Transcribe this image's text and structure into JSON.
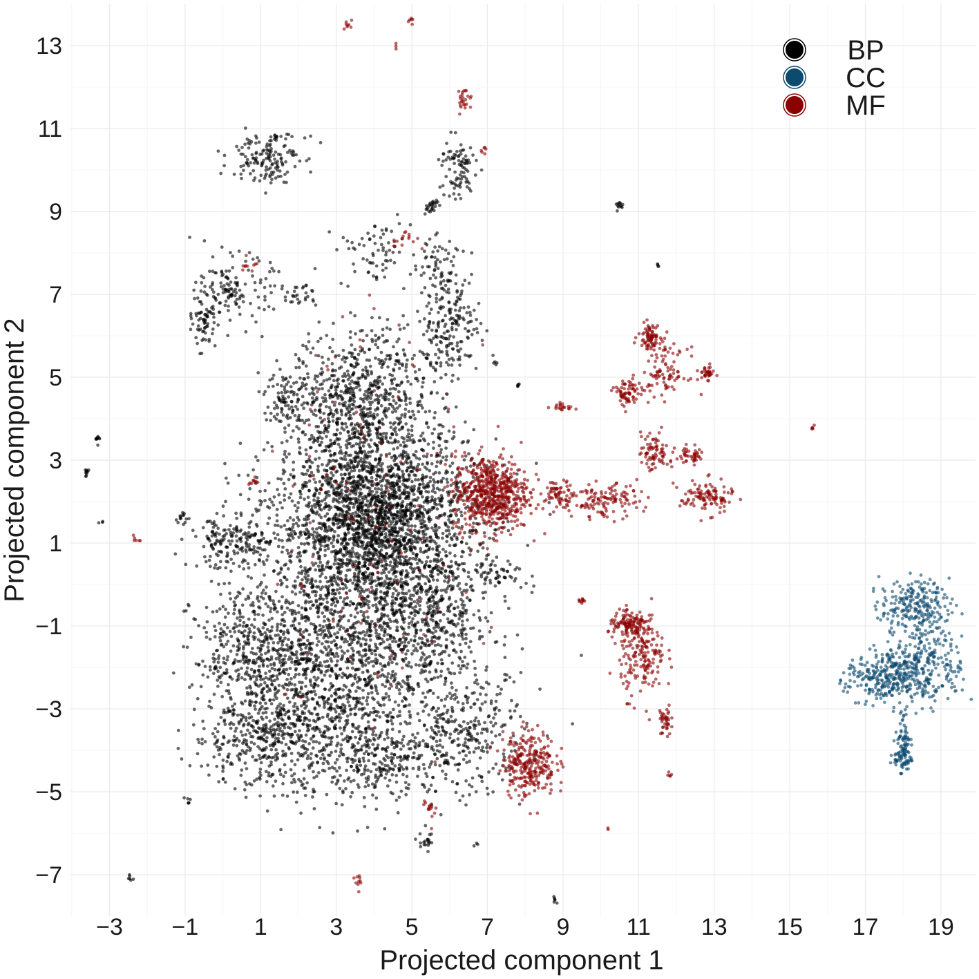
{
  "chart_data": {
    "type": "scatter",
    "title": "",
    "xlabel": "Projected component 1",
    "ylabel": "Projected component 2",
    "xlim": [
      -4,
      20
    ],
    "ylim": [
      -7.8,
      13.8
    ],
    "xticks": [
      -3,
      -1,
      1,
      3,
      5,
      7,
      9,
      11,
      13,
      15,
      17,
      19
    ],
    "yticks": [
      -7,
      -5,
      -3,
      -1,
      1,
      3,
      5,
      7,
      9,
      11,
      13
    ],
    "xtick_labels": [
      "−3",
      "−1",
      "1",
      "3",
      "5",
      "7",
      "9",
      "11",
      "13",
      "15",
      "17",
      "19"
    ],
    "ytick_labels": [
      "−7",
      "−5",
      "−3",
      "−1",
      "1",
      "3",
      "5",
      "7",
      "9",
      "11",
      "13"
    ],
    "grid": true,
    "legend_position": "top-right",
    "series": [
      {
        "name": "BP",
        "color": "#000000",
        "clusters": [
          {
            "x": 4.0,
            "y": 1.6,
            "sx": 1.3,
            "sy": 1.1,
            "n": 2600
          },
          {
            "x": 3.6,
            "y": 4.5,
            "sx": 0.9,
            "sy": 0.8,
            "n": 700
          },
          {
            "x": 2.8,
            "y": -2.0,
            "sx": 1.2,
            "sy": 1.3,
            "n": 1100
          },
          {
            "x": 5.2,
            "y": -0.8,
            "sx": 1.0,
            "sy": 1.0,
            "n": 700
          },
          {
            "x": 1.0,
            "y": -1.6,
            "sx": 0.9,
            "sy": 0.8,
            "n": 450
          },
          {
            "x": 1.0,
            "y": -3.7,
            "sx": 0.9,
            "sy": 0.6,
            "n": 380
          },
          {
            "x": 4.2,
            "y": -4.2,
            "sx": 1.1,
            "sy": 0.5,
            "n": 320
          },
          {
            "x": 6.4,
            "y": -3.6,
            "sx": 0.8,
            "sy": 0.7,
            "n": 300
          },
          {
            "x": 0.3,
            "y": 1.0,
            "sx": 0.6,
            "sy": 0.3,
            "n": 180
          },
          {
            "x": 1.7,
            "y": 4.5,
            "sx": 0.3,
            "sy": 0.3,
            "n": 70
          },
          {
            "x": 6.0,
            "y": 6.3,
            "sx": 0.4,
            "sy": 0.7,
            "n": 220
          },
          {
            "x": 4.0,
            "y": 8.0,
            "sx": 0.5,
            "sy": 0.4,
            "n": 70
          },
          {
            "x": 1.1,
            "y": 10.3,
            "sx": 0.45,
            "sy": 0.3,
            "n": 140
          },
          {
            "x": 6.2,
            "y": 10.0,
            "sx": 0.25,
            "sy": 0.4,
            "n": 90
          },
          {
            "x": 0.3,
            "y": 7.1,
            "sx": 0.5,
            "sy": 0.4,
            "n": 140
          },
          {
            "x": -0.5,
            "y": 6.3,
            "sx": 0.15,
            "sy": 0.3,
            "n": 60
          },
          {
            "x": 2.0,
            "y": 7.0,
            "sx": 0.3,
            "sy": 0.2,
            "n": 30
          },
          {
            "x": 5.6,
            "y": 7.8,
            "sx": 0.3,
            "sy": 0.3,
            "n": 40
          },
          {
            "x": 5.4,
            "y": -6.2,
            "sx": 0.1,
            "sy": 0.15,
            "n": 20
          },
          {
            "x": 5.5,
            "y": 9.1,
            "sx": 0.1,
            "sy": 0.1,
            "n": 25
          },
          {
            "x": 7.3,
            "y": 0.3,
            "sx": 0.4,
            "sy": 0.15,
            "n": 50
          },
          {
            "x": 10.5,
            "y": 9.15,
            "sx": 0.05,
            "sy": 0.05,
            "n": 12
          },
          {
            "x": 11.5,
            "y": 7.7,
            "sx": 0.03,
            "sy": 0.03,
            "n": 4
          },
          {
            "x": -3.3,
            "y": 3.5,
            "sx": 0.05,
            "sy": 0.05,
            "n": 10
          },
          {
            "x": -3.6,
            "y": 2.7,
            "sx": 0.05,
            "sy": 0.05,
            "n": 10
          },
          {
            "x": -1.1,
            "y": 1.6,
            "sx": 0.1,
            "sy": 0.1,
            "n": 12
          },
          {
            "x": -3.2,
            "y": 1.5,
            "sx": 0.03,
            "sy": 0.03,
            "n": 3
          },
          {
            "x": -2.5,
            "y": -7.1,
            "sx": 0.05,
            "sy": 0.05,
            "n": 6
          },
          {
            "x": -0.9,
            "y": -5.2,
            "sx": 0.05,
            "sy": 0.05,
            "n": 6
          },
          {
            "x": 8.8,
            "y": -7.6,
            "sx": 0.05,
            "sy": 0.05,
            "n": 6
          },
          {
            "x": 6.7,
            "y": -6.3,
            "sx": 0.03,
            "sy": 0.03,
            "n": 3
          },
          {
            "x": 7.8,
            "y": 4.8,
            "sx": 0.05,
            "sy": 0.05,
            "n": 5
          },
          {
            "x": 7.2,
            "y": 5.4,
            "sx": 0.05,
            "sy": 0.05,
            "n": 5
          },
          {
            "x": 1.5,
            "y": 10.8,
            "sx": 0.3,
            "sy": 0.05,
            "n": 15
          }
        ]
      },
      {
        "name": "CC",
        "color": "#0c4a6e",
        "clusters": [
          {
            "x": 18.3,
            "y": -0.5,
            "sx": 0.45,
            "sy": 0.3,
            "n": 220
          },
          {
            "x": 18.5,
            "y": -1.9,
            "sx": 0.55,
            "sy": 0.5,
            "n": 320
          },
          {
            "x": 17.4,
            "y": -2.3,
            "sx": 0.45,
            "sy": 0.3,
            "n": 220
          },
          {
            "x": 18.0,
            "y": -3.7,
            "sx": 0.1,
            "sy": 0.4,
            "n": 70
          },
          {
            "x": 18.0,
            "y": -4.2,
            "sx": 0.12,
            "sy": 0.15,
            "n": 50
          }
        ]
      },
      {
        "name": "MF",
        "color": "#8b0000",
        "clusters": [
          {
            "x": 7.1,
            "y": 2.2,
            "sx": 0.5,
            "sy": 0.45,
            "n": 650
          },
          {
            "x": 8.1,
            "y": -4.3,
            "sx": 0.35,
            "sy": 0.4,
            "n": 280
          },
          {
            "x": 11.1,
            "y": -1.7,
            "sx": 0.3,
            "sy": 0.5,
            "n": 180
          },
          {
            "x": 10.8,
            "y": -1.0,
            "sx": 0.3,
            "sy": 0.15,
            "n": 120
          },
          {
            "x": 11.7,
            "y": -3.3,
            "sx": 0.08,
            "sy": 0.2,
            "n": 40
          },
          {
            "x": 11.3,
            "y": 6.0,
            "sx": 0.15,
            "sy": 0.15,
            "n": 80
          },
          {
            "x": 11.7,
            "y": 5.1,
            "sx": 0.3,
            "sy": 0.3,
            "n": 90
          },
          {
            "x": 12.8,
            "y": 5.1,
            "sx": 0.1,
            "sy": 0.08,
            "n": 35
          },
          {
            "x": 10.7,
            "y": 4.6,
            "sx": 0.18,
            "sy": 0.18,
            "n": 70
          },
          {
            "x": 11.4,
            "y": 3.2,
            "sx": 0.2,
            "sy": 0.25,
            "n": 80
          },
          {
            "x": 12.4,
            "y": 3.1,
            "sx": 0.2,
            "sy": 0.12,
            "n": 45
          },
          {
            "x": 12.8,
            "y": 2.1,
            "sx": 0.35,
            "sy": 0.2,
            "n": 110
          },
          {
            "x": 10.1,
            "y": 2.0,
            "sx": 0.45,
            "sy": 0.2,
            "n": 130
          },
          {
            "x": 8.9,
            "y": 2.2,
            "sx": 0.2,
            "sy": 0.15,
            "n": 60
          },
          {
            "x": 9.0,
            "y": 4.3,
            "sx": 0.15,
            "sy": 0.05,
            "n": 20
          },
          {
            "x": 9.5,
            "y": -0.4,
            "sx": 0.05,
            "sy": 0.05,
            "n": 10
          },
          {
            "x": 11.8,
            "y": -4.6,
            "sx": 0.03,
            "sy": 0.04,
            "n": 5
          },
          {
            "x": 15.6,
            "y": 3.8,
            "sx": 0.03,
            "sy": 0.03,
            "n": 5
          },
          {
            "x": 3.6,
            "y": -7.2,
            "sx": 0.06,
            "sy": 0.1,
            "n": 10
          },
          {
            "x": 10.2,
            "y": -5.9,
            "sx": 0.02,
            "sy": 0.02,
            "n": 2
          },
          {
            "x": 6.4,
            "y": 11.7,
            "sx": 0.1,
            "sy": 0.15,
            "n": 25
          },
          {
            "x": 6.9,
            "y": 10.5,
            "sx": 0.05,
            "sy": 0.05,
            "n": 6
          },
          {
            "x": 3.3,
            "y": 13.5,
            "sx": 0.06,
            "sy": 0.06,
            "n": 8
          },
          {
            "x": 5.0,
            "y": 13.6,
            "sx": 0.05,
            "sy": 0.05,
            "n": 6
          },
          {
            "x": 4.6,
            "y": 13.0,
            "sx": 0.03,
            "sy": 0.03,
            "n": 3
          },
          {
            "x": 3.9,
            "y": 3.0,
            "sx": 1.2,
            "sy": 2.0,
            "n": 70
          },
          {
            "x": -2.3,
            "y": 1.1,
            "sx": 0.05,
            "sy": 0.05,
            "n": 6
          },
          {
            "x": 0.8,
            "y": 2.5,
            "sx": 0.1,
            "sy": 0.05,
            "n": 10
          },
          {
            "x": 0.7,
            "y": 7.7,
            "sx": 0.1,
            "sy": 0.1,
            "n": 10
          },
          {
            "x": 4.8,
            "y": 8.3,
            "sx": 0.25,
            "sy": 0.15,
            "n": 15
          },
          {
            "x": 5.5,
            "y": -5.3,
            "sx": 0.1,
            "sy": 0.2,
            "n": 15
          },
          {
            "x": 4.0,
            "y": -1.0,
            "sx": 1.5,
            "sy": 1.5,
            "n": 40
          }
        ]
      }
    ]
  }
}
